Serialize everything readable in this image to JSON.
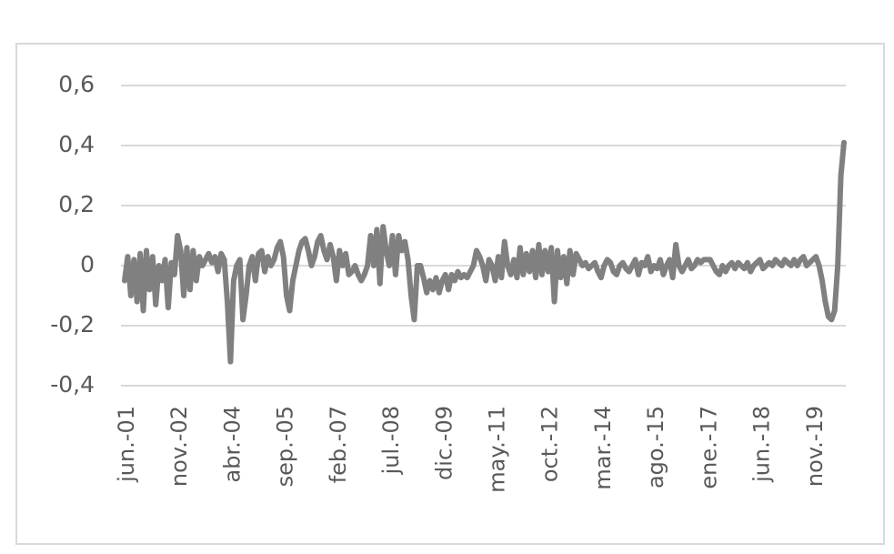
{
  "chart_data": {
    "type": "line",
    "categories": [
      "jun.-01",
      null,
      null,
      null,
      null,
      null,
      null,
      null,
      null,
      null,
      null,
      null,
      null,
      null,
      null,
      null,
      null,
      "nov.-02",
      null,
      null,
      null,
      null,
      null,
      null,
      null,
      null,
      null,
      null,
      null,
      null,
      null,
      null,
      null,
      null,
      "abr.-04",
      null,
      null,
      null,
      null,
      null,
      null,
      null,
      null,
      null,
      null,
      null,
      null,
      null,
      null,
      null,
      null,
      "sep.-05",
      null,
      null,
      null,
      null,
      null,
      null,
      null,
      null,
      null,
      null,
      null,
      null,
      null,
      null,
      null,
      null,
      "feb.-07",
      null,
      null,
      null,
      null,
      null,
      null,
      null,
      null,
      null,
      null,
      null,
      null,
      null,
      null,
      null,
      null,
      "jul.-08",
      null,
      null,
      null,
      null,
      null,
      null,
      null,
      null,
      null,
      null,
      null,
      null,
      null,
      null,
      null,
      null,
      "dic.-09",
      null,
      null,
      null,
      null,
      null,
      null,
      null,
      null,
      null,
      null,
      null,
      null,
      null,
      null,
      null,
      null,
      "may.-11",
      null,
      null,
      null,
      null,
      null,
      null,
      null,
      null,
      null,
      null,
      null,
      null,
      null,
      null,
      null,
      null,
      "oct.-12",
      null,
      null,
      null,
      null,
      null,
      null,
      null,
      null,
      null,
      null,
      null,
      null,
      null,
      null,
      null,
      null,
      "mar.-14",
      null,
      null,
      null,
      null,
      null,
      null,
      null,
      null,
      null,
      null,
      null,
      null,
      null,
      null,
      null,
      null,
      "ago.-15",
      null,
      null,
      null,
      null,
      null,
      null,
      null,
      null,
      null,
      null,
      null,
      null,
      null,
      null,
      null,
      null,
      "ene.-17",
      null,
      null,
      null,
      null,
      null,
      null,
      null,
      null,
      null,
      null,
      null,
      null,
      null,
      null,
      null,
      null,
      "jun.-18",
      null,
      null,
      null,
      null,
      null,
      null,
      null,
      null,
      null,
      null,
      null,
      null,
      null,
      null,
      null,
      null,
      "nov.-19",
      null,
      null,
      null,
      null,
      null,
      null,
      null,
      null,
      null,
      null
    ],
    "series": [
      {
        "color": "#808080",
        "values": [
          -0.05,
          0.03,
          -0.1,
          0.02,
          -0.12,
          0.04,
          -0.15,
          0.05,
          -0.08,
          0.03,
          -0.13,
          0.0,
          -0.05,
          0.02,
          -0.14,
          0.01,
          -0.03,
          0.1,
          0.05,
          -0.1,
          0.06,
          -0.08,
          0.05,
          -0.05,
          0.03,
          0.0,
          0.02,
          0.04,
          0.01,
          0.03,
          -0.02,
          0.04,
          0.02,
          -0.12,
          -0.32,
          -0.05,
          0.0,
          0.02,
          -0.18,
          -0.1,
          0.0,
          0.03,
          -0.05,
          0.04,
          0.05,
          -0.02,
          0.03,
          0.0,
          0.02,
          0.06,
          0.08,
          0.03,
          -0.1,
          -0.15,
          -0.05,
          0.0,
          0.05,
          0.08,
          0.09,
          0.05,
          0.0,
          0.03,
          0.08,
          0.1,
          0.05,
          0.02,
          0.07,
          0.03,
          -0.05,
          0.05,
          0.0,
          0.04,
          -0.03,
          -0.02,
          0.0,
          -0.03,
          -0.05,
          -0.03,
          0.0,
          0.1,
          0.0,
          0.12,
          -0.06,
          0.13,
          0.05,
          0.0,
          0.1,
          -0.03,
          0.1,
          0.05,
          0.08,
          0.02,
          -0.1,
          -0.18,
          0.0,
          0.0,
          -0.04,
          -0.09,
          -0.05,
          -0.08,
          -0.04,
          -0.09,
          -0.05,
          -0.03,
          -0.08,
          -0.03,
          -0.05,
          -0.02,
          -0.04,
          -0.03,
          -0.04,
          -0.02,
          0.0,
          0.05,
          0.03,
          0.0,
          -0.05,
          0.02,
          0.0,
          -0.05,
          0.03,
          -0.04,
          0.08,
          0.0,
          -0.03,
          0.02,
          -0.04,
          0.06,
          -0.03,
          0.04,
          -0.02,
          0.05,
          -0.04,
          0.07,
          -0.03,
          0.05,
          -0.02,
          0.06,
          -0.12,
          0.05,
          -0.04,
          0.03,
          -0.06,
          0.05,
          -0.03,
          0.04,
          0.02,
          0.0,
          0.01,
          -0.01,
          0.0,
          0.01,
          -0.02,
          -0.04,
          0.0,
          0.02,
          0.01,
          -0.02,
          -0.03,
          0.0,
          0.01,
          -0.01,
          -0.02,
          0.0,
          0.02,
          -0.03,
          0.01,
          0.0,
          0.03,
          -0.02,
          0.0,
          -0.01,
          0.02,
          -0.03,
          0.0,
          0.02,
          -0.04,
          0.07,
          0.0,
          -0.02,
          0.0,
          0.02,
          -0.01,
          0.0,
          0.02,
          0.01,
          0.02,
          0.02,
          0.02,
          0.0,
          -0.02,
          -0.03,
          0.0,
          -0.02,
          0.0,
          0.01,
          -0.01,
          0.01,
          0.0,
          -0.01,
          0.01,
          -0.02,
          0.0,
          0.01,
          0.02,
          -0.01,
          0.0,
          0.01,
          0.0,
          0.02,
          0.01,
          0.0,
          0.02,
          0.01,
          0.0,
          0.02,
          0.0,
          0.02,
          0.03,
          0.0,
          0.01,
          0.02,
          0.03,
          0.0,
          -0.05,
          -0.12,
          -0.17,
          -0.18,
          -0.15,
          0.0,
          0.3,
          0.41
        ]
      }
    ],
    "ylim": [
      -0.4,
      0.6
    ],
    "yticks": [
      {
        "value": -0.4,
        "label": "-0,4"
      },
      {
        "value": -0.2,
        "label": "-0,2"
      },
      0,
      {
        "value": 0.2,
        "label": "0,2"
      },
      {
        "value": 0.4,
        "label": "0,4"
      },
      {
        "value": 0.6,
        "label": "0,6"
      }
    ],
    "grid": true
  }
}
